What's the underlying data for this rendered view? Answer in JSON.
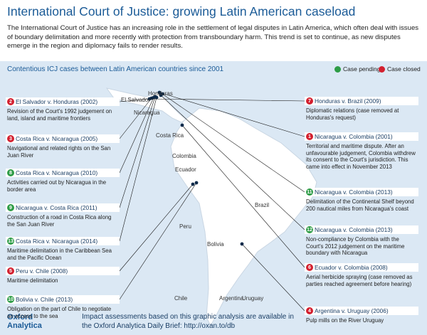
{
  "header": {
    "title": "International Court of Justice: growing Latin American caseload",
    "intro": "The International Court of Justice has an increasing role in the settlement of legal disputes in Latin America, which often deal with issues of boundary delimitation and more recently with protection from transboundary harm. This trend is set to continue, as new disputes emerge in the region and diplomacy fails to render results."
  },
  "map": {
    "title": "Contentious ICJ cases between Latin American countries since 2001",
    "legend": [
      {
        "label": "Case pending",
        "status": "pending",
        "color": "#2e9c46"
      },
      {
        "label": "Case closed",
        "status": "closed",
        "color": "#d3202f"
      }
    ],
    "countries": [
      "Honduras",
      "El Salvador",
      "Nicaragua",
      "Costa Rica",
      "Colombia",
      "Ecuador",
      "Peru",
      "Bolivia",
      "Brazil",
      "Chile",
      "Argentina",
      "Uruguay"
    ],
    "cases": [
      {
        "number": 2,
        "status": "closed",
        "title": "El Salvador v. Honduras (2002)",
        "description": "Revision of the Court's 1992 judgement on land, island and maritime frontiers"
      },
      {
        "number": 3,
        "status": "closed",
        "title": "Costa Rica v. Nicaragua (2005)",
        "description": "Navigational and related rights on the San Juan River"
      },
      {
        "number": 8,
        "status": "pending",
        "title": "Costa Rica v. Nicaragua (2010)",
        "description": "Activities carried out by Nicaragua in the border area"
      },
      {
        "number": 9,
        "status": "pending",
        "title": "Nicaragua v. Costa Rica (2011)",
        "description": "Construction of a road in Costa Rica along the San Juan River"
      },
      {
        "number": 13,
        "status": "pending",
        "title": "Costa Rica v. Nicaragua (2014)",
        "description": "Maritime delimitation in the Caribbean Sea and the Pacific Ocean"
      },
      {
        "number": 5,
        "status": "closed",
        "title": "Peru v. Chile (2008)",
        "description": "Maritime delimitation"
      },
      {
        "number": 10,
        "status": "pending",
        "title": "Bolivia v. Chile (2013)",
        "description": "Obligation on the part of Chile to negotiate an access to the sea"
      },
      {
        "number": 7,
        "status": "closed",
        "title": "Honduras v. Brazil (2009)",
        "description": "Diplomatic relations (case removed at Honduras's request)"
      },
      {
        "number": 1,
        "status": "closed",
        "title": "Nicaragua v. Colombia (2001)",
        "description": "Territorial and maritime dispute. After an unfavourable judgement, Colombia withdrew its consent to the Court's jurisdiction. This came into effect in November 2013"
      },
      {
        "number": 11,
        "status": "pending",
        "title": "Nicaragua v. Colombia (2013)",
        "description": "Delimitation of the Continental Shelf beyond 200 nautical miles from Nicaragua's coast"
      },
      {
        "number": 12,
        "status": "pending",
        "title": "Nicaragua v. Colombia (2013)",
        "description": "Non-compliance by Colombia with the Court's 2012 judgement on the maritime boundary with Nicaragua"
      },
      {
        "number": 6,
        "status": "closed",
        "title": "Ecuador v. Colombia (2008)",
        "description": "Aerial herbicide spraying (case removed as parties reached agreement before hearing)"
      },
      {
        "number": 4,
        "status": "closed",
        "title": "Argentina v. Uruguay (2006)",
        "description": "Pulp mills on the River Uruguay"
      }
    ]
  },
  "footer": {
    "logo": "Oxford Analytica",
    "text": "Impact assessments based on this graphic analysis are available in the Oxford Analytica Daily Brief: http://oxan.to/db"
  }
}
